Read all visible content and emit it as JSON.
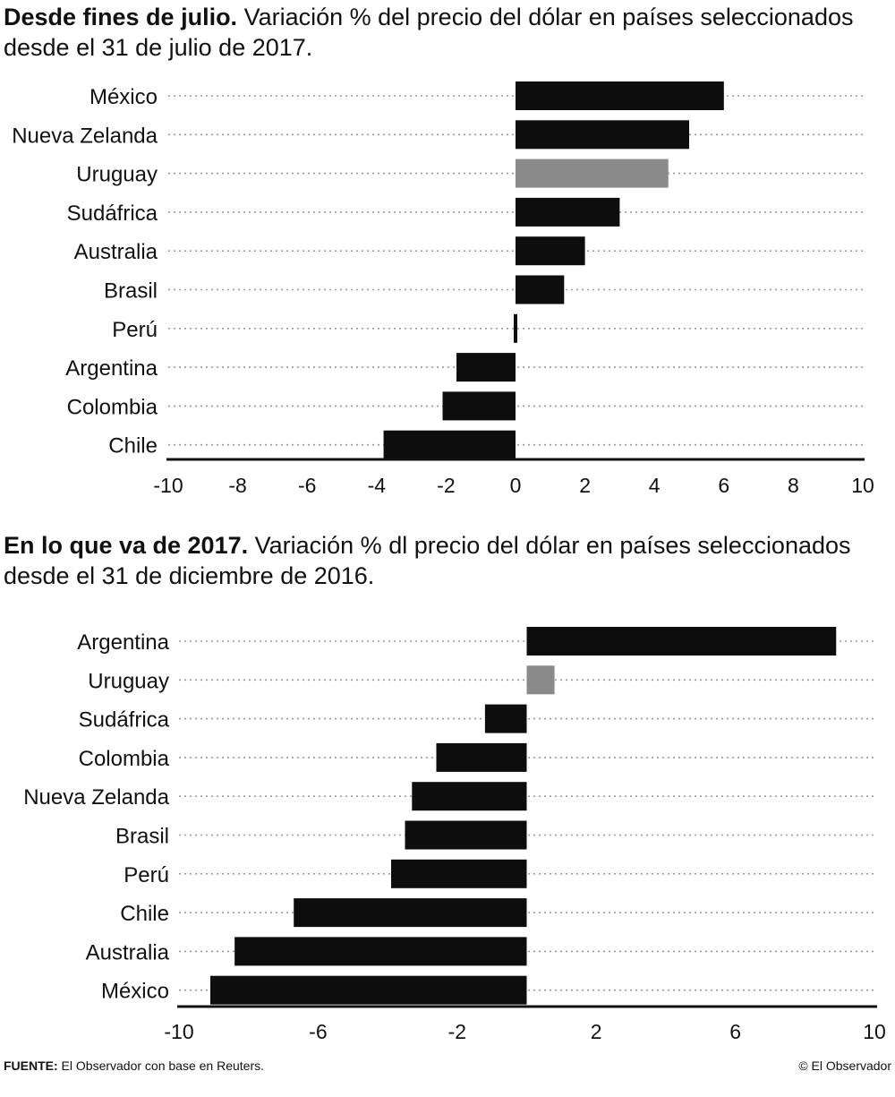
{
  "charts": [
    {
      "title_lead": "Desde fines de julio.",
      "title_rest": " Variación % del precio del dólar en países seleccionados desde el 31 de julio de 2017."
    },
    {
      "title_lead": "En lo que va de 2017.",
      "title_rest": " Variación % dl precio del dólar en países seleccionados desde el 31 de diciembre de 2016."
    }
  ],
  "footer": {
    "source_label": "FUENTE:",
    "source_text": " El Observador con base en Reuters.",
    "credit": "© El Observador"
  },
  "colors": {
    "bar": "#0d0d0d",
    "highlight": "#8a8a8a",
    "gridline": "#9a9a9a",
    "axis": "#111111"
  },
  "chart_data": [
    {
      "type": "bar",
      "orientation": "horizontal",
      "title": "Desde fines de julio. Variación % del precio del dólar en países seleccionados desde el 31 de julio de 2017.",
      "categories": [
        "México",
        "Nueva Zelanda",
        "Uruguay",
        "Sudáfrica",
        "Australia",
        "Brasil",
        "Perú",
        "Argentina",
        "Colombia",
        "Chile"
      ],
      "values": [
        6.0,
        5.0,
        4.4,
        3.0,
        2.0,
        1.4,
        -0.1,
        -1.7,
        -2.1,
        -3.8
      ],
      "highlight": "Uruguay",
      "xlim": [
        -10,
        10
      ],
      "xticks": [
        -10,
        -8,
        -6,
        -4,
        -2,
        0,
        2,
        4,
        6,
        8,
        10
      ],
      "xlabel": "",
      "ylabel": ""
    },
    {
      "type": "bar",
      "orientation": "horizontal",
      "title": "En lo que va de 2017. Variación % dl precio del dólar en países seleccionados desde el 31 de diciembre de 2016.",
      "categories": [
        "Argentina",
        "Uruguay",
        "Sudáfrica",
        "Colombia",
        "Nueva Zelanda",
        "Brasil",
        "Perú",
        "Chile",
        "Australia",
        "México"
      ],
      "values": [
        8.9,
        0.8,
        -1.2,
        -2.6,
        -3.3,
        -3.5,
        -3.9,
        -6.7,
        -8.4,
        -9.1
      ],
      "highlight": "Uruguay",
      "xlim": [
        -10,
        10
      ],
      "xticks": [
        -10,
        -6,
        -2,
        2,
        6,
        10
      ],
      "xlabel": "",
      "ylabel": ""
    }
  ]
}
